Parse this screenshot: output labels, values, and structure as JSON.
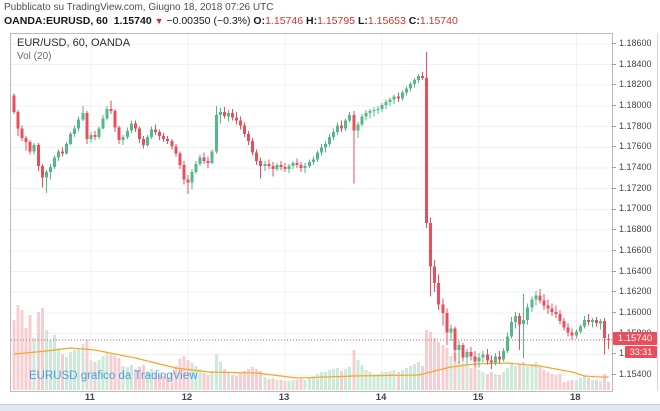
{
  "header": {
    "published": "Pubblicato su TradingView.com, Giugno 18, 2018 07:26 UTC",
    "symbol": "OANDA:EURUSD, 60",
    "last": "1.15740",
    "direction_icon": "▼",
    "change": "−0.00350 (−0.3%)",
    "open_label": "O:",
    "open": "1.15746",
    "high_label": "H:",
    "high": "1.15795",
    "low_label": "L:",
    "low": "1.15653",
    "close_label": "C:",
    "close": "1.15740"
  },
  "legend": {
    "symbol": "EUR/USD, 60, OANDA",
    "indicator": "Vol (20)"
  },
  "watermark": "EURUSD grafico da TradingView",
  "price_scale": {
    "tick_labels": [
      "1.18600",
      "1.18400",
      "1.18200",
      "1.18000",
      "1.17800",
      "1.17600",
      "1.17400",
      "1.17200",
      "1.17000",
      "1.16800",
      "1.16600",
      "1.16400",
      "1.16200",
      "1.16000",
      "1.15800",
      "1.15600",
      "1.15400"
    ],
    "last_price_badge": "1.15740",
    "countdown_badge": "33:31"
  },
  "time_scale": {
    "labels": [
      "11",
      "12",
      "13",
      "14",
      "15",
      "18"
    ]
  },
  "colors": {
    "up": "#53b987",
    "down": "#eb4d5c",
    "vol_up": "#cde9d8",
    "vol_down": "#f8cdd2",
    "vol_ma": "#f5a623",
    "last_price_line": "#eb4d5c",
    "grid": "#f0f0f0",
    "header_value_red": "#d0342c"
  },
  "chart_data": {
    "type": "candlestick",
    "title": "EUR/USD, 60, OANDA",
    "symbol": "OANDA:EURUSD",
    "interval_minutes": 60,
    "legend_indicator": "Vol (20)",
    "ylim": [
      1.15245,
      1.18695
    ],
    "grid_step": 0.002,
    "last_price": 1.1574,
    "countdown": "33:31",
    "day_labels": [
      "11",
      "12",
      "13",
      "14",
      "15",
      "18"
    ],
    "day_start_indices": [
      19,
      43,
      67,
      91,
      115,
      139
    ],
    "ohlc": [
      [
        1.181,
        1.1812,
        1.1792,
        1.1794
      ],
      [
        1.1794,
        1.1796,
        1.1771,
        1.1778
      ],
      [
        1.1778,
        1.1781,
        1.1766,
        1.1769
      ],
      [
        1.1769,
        1.1771,
        1.1757,
        1.1765
      ],
      [
        1.1765,
        1.1767,
        1.1753,
        1.1756
      ],
      [
        1.1756,
        1.1764,
        1.1753,
        1.1762
      ],
      [
        1.1762,
        1.1764,
        1.1737,
        1.1742
      ],
      [
        1.1742,
        1.1744,
        1.1721,
        1.1731
      ],
      [
        1.1731,
        1.1738,
        1.1716,
        1.1736
      ],
      [
        1.1736,
        1.1744,
        1.1729,
        1.1741
      ],
      [
        1.1741,
        1.1752,
        1.1739,
        1.175
      ],
      [
        1.175,
        1.1758,
        1.1747,
        1.1756
      ],
      [
        1.1756,
        1.176,
        1.1751,
        1.1754
      ],
      [
        1.1754,
        1.1765,
        1.1753,
        1.1763
      ],
      [
        1.1763,
        1.1775,
        1.1762,
        1.1773
      ],
      [
        1.1773,
        1.1781,
        1.177,
        1.1778
      ],
      [
        1.1778,
        1.179,
        1.1776,
        1.1787
      ],
      [
        1.1787,
        1.18,
        1.1785,
        1.1793
      ],
      [
        1.1793,
        1.1795,
        1.1763,
        1.1768
      ],
      [
        1.1768,
        1.1775,
        1.1764,
        1.1772
      ],
      [
        1.1772,
        1.1776,
        1.1767,
        1.177
      ],
      [
        1.177,
        1.178,
        1.1768,
        1.1778
      ],
      [
        1.1778,
        1.1791,
        1.1777,
        1.1788
      ],
      [
        1.1788,
        1.18,
        1.1786,
        1.1797
      ],
      [
        1.1797,
        1.1805,
        1.1792,
        1.1795
      ],
      [
        1.1795,
        1.1797,
        1.1775,
        1.1779
      ],
      [
        1.1779,
        1.1781,
        1.1763,
        1.1767
      ],
      [
        1.1767,
        1.1772,
        1.1762,
        1.177
      ],
      [
        1.177,
        1.1779,
        1.1768,
        1.1776
      ],
      [
        1.1776,
        1.1786,
        1.1774,
        1.1783
      ],
      [
        1.1783,
        1.1786,
        1.1775,
        1.1778
      ],
      [
        1.1778,
        1.178,
        1.1764,
        1.1768
      ],
      [
        1.1768,
        1.1771,
        1.1759,
        1.1762
      ],
      [
        1.1762,
        1.1772,
        1.1761,
        1.177
      ],
      [
        1.177,
        1.178,
        1.1768,
        1.1777
      ],
      [
        1.1777,
        1.1782,
        1.1772,
        1.1775
      ],
      [
        1.1775,
        1.1777,
        1.1767,
        1.1771
      ],
      [
        1.1771,
        1.1774,
        1.1765,
        1.1768
      ],
      [
        1.1768,
        1.1771,
        1.1763,
        1.1766
      ],
      [
        1.1766,
        1.1768,
        1.1758,
        1.1761
      ],
      [
        1.1761,
        1.1763,
        1.1751,
        1.1754
      ],
      [
        1.1754,
        1.1756,
        1.1739,
        1.1743
      ],
      [
        1.1743,
        1.1747,
        1.1724,
        1.1729
      ],
      [
        1.1729,
        1.1733,
        1.1715,
        1.1726
      ],
      [
        1.1726,
        1.1739,
        1.1719,
        1.1736
      ],
      [
        1.1736,
        1.1747,
        1.1734,
        1.1744
      ],
      [
        1.1744,
        1.1753,
        1.1742,
        1.175
      ],
      [
        1.175,
        1.1755,
        1.1744,
        1.1747
      ],
      [
        1.1747,
        1.1751,
        1.174,
        1.1745
      ],
      [
        1.1745,
        1.1758,
        1.1744,
        1.1756
      ],
      [
        1.1756,
        1.18,
        1.1754,
        1.1791
      ],
      [
        1.1791,
        1.1798,
        1.1783,
        1.1794
      ],
      [
        1.1794,
        1.1799,
        1.1788,
        1.179
      ],
      [
        1.179,
        1.1796,
        1.1785,
        1.1793
      ],
      [
        1.1793,
        1.1797,
        1.1786,
        1.1789
      ],
      [
        1.1789,
        1.1794,
        1.1782,
        1.1786
      ],
      [
        1.1786,
        1.179,
        1.1777,
        1.1781
      ],
      [
        1.1781,
        1.1784,
        1.177,
        1.1773
      ],
      [
        1.1773,
        1.1776,
        1.1762,
        1.1766
      ],
      [
        1.1766,
        1.1769,
        1.1752,
        1.1755
      ],
      [
        1.1755,
        1.1758,
        1.1743,
        1.1747
      ],
      [
        1.1747,
        1.175,
        1.173,
        1.1742
      ],
      [
        1.1742,
        1.1747,
        1.1737,
        1.1744
      ],
      [
        1.1744,
        1.1748,
        1.1739,
        1.1742
      ],
      [
        1.1742,
        1.1746,
        1.1732,
        1.1739
      ],
      [
        1.1739,
        1.1745,
        1.1737,
        1.1743
      ],
      [
        1.1743,
        1.1747,
        1.1738,
        1.1741
      ],
      [
        1.1741,
        1.1745,
        1.1736,
        1.1739
      ],
      [
        1.1739,
        1.1744,
        1.1735,
        1.1742
      ],
      [
        1.1742,
        1.1747,
        1.1739,
        1.1745
      ],
      [
        1.1745,
        1.1749,
        1.174,
        1.1743
      ],
      [
        1.1743,
        1.1746,
        1.1736,
        1.174
      ],
      [
        1.174,
        1.1745,
        1.1735,
        1.1742
      ],
      [
        1.1742,
        1.1748,
        1.174,
        1.1746
      ],
      [
        1.1746,
        1.1751,
        1.1743,
        1.1748
      ],
      [
        1.1748,
        1.1757,
        1.1746,
        1.1755
      ],
      [
        1.1755,
        1.1763,
        1.1752,
        1.176
      ],
      [
        1.176,
        1.1766,
        1.1755,
        1.1763
      ],
      [
        1.1763,
        1.1773,
        1.1761,
        1.177
      ],
      [
        1.177,
        1.1778,
        1.1767,
        1.1775
      ],
      [
        1.1775,
        1.1784,
        1.1772,
        1.1781
      ],
      [
        1.1781,
        1.1786,
        1.1775,
        1.1778
      ],
      [
        1.1778,
        1.1788,
        1.1776,
        1.1786
      ],
      [
        1.1786,
        1.1794,
        1.1784,
        1.1791
      ],
      [
        1.1791,
        1.1795,
        1.1725,
        1.1776
      ],
      [
        1.1776,
        1.1785,
        1.1769,
        1.1782
      ],
      [
        1.1782,
        1.1792,
        1.178,
        1.179
      ],
      [
        1.179,
        1.1796,
        1.1786,
        1.1793
      ],
      [
        1.1793,
        1.1797,
        1.1788,
        1.1795
      ],
      [
        1.1795,
        1.1799,
        1.179,
        1.1796
      ],
      [
        1.1796,
        1.18,
        1.1792,
        1.1797
      ],
      [
        1.1797,
        1.1803,
        1.1794,
        1.1801
      ],
      [
        1.1801,
        1.1806,
        1.1797,
        1.1804
      ],
      [
        1.1804,
        1.1808,
        1.18,
        1.1806
      ],
      [
        1.1806,
        1.1811,
        1.1802,
        1.1809
      ],
      [
        1.1809,
        1.1813,
        1.1804,
        1.1807
      ],
      [
        1.1807,
        1.1815,
        1.1805,
        1.1813
      ],
      [
        1.1813,
        1.1819,
        1.181,
        1.1817
      ],
      [
        1.1817,
        1.1823,
        1.1814,
        1.1821
      ],
      [
        1.1821,
        1.1827,
        1.1818,
        1.1825
      ],
      [
        1.1825,
        1.1831,
        1.1822,
        1.1829
      ],
      [
        1.1829,
        1.1833,
        1.1825,
        1.1827
      ],
      [
        1.1827,
        1.1852,
        1.1682,
        1.1687
      ],
      [
        1.1687,
        1.1692,
        1.1616,
        1.1645
      ],
      [
        1.1645,
        1.1651,
        1.162,
        1.1629
      ],
      [
        1.1629,
        1.1637,
        1.1603,
        1.1608
      ],
      [
        1.1608,
        1.1614,
        1.1588,
        1.16
      ],
      [
        1.16,
        1.1604,
        1.1569,
        1.1581
      ],
      [
        1.1581,
        1.1589,
        1.1573,
        1.1585
      ],
      [
        1.1585,
        1.1587,
        1.1553,
        1.1564
      ],
      [
        1.1564,
        1.1573,
        1.1551,
        1.1569
      ],
      [
        1.1569,
        1.1571,
        1.1553,
        1.1557
      ],
      [
        1.1557,
        1.1565,
        1.155,
        1.1562
      ],
      [
        1.1562,
        1.1567,
        1.1554,
        1.1558
      ],
      [
        1.1558,
        1.1563,
        1.1548,
        1.1553
      ],
      [
        1.1553,
        1.1561,
        1.1547,
        1.1557
      ],
      [
        1.1557,
        1.1563,
        1.1552,
        1.156
      ],
      [
        1.156,
        1.1565,
        1.155,
        1.1554
      ],
      [
        1.1554,
        1.1559,
        1.1546,
        1.1552
      ],
      [
        1.1552,
        1.1561,
        1.1549,
        1.1558
      ],
      [
        1.1558,
        1.1563,
        1.1551,
        1.1555
      ],
      [
        1.1555,
        1.1566,
        1.1553,
        1.1563
      ],
      [
        1.1563,
        1.1581,
        1.1561,
        1.1577
      ],
      [
        1.1577,
        1.1596,
        1.1575,
        1.1591
      ],
      [
        1.1591,
        1.1601,
        1.1585,
        1.1597
      ],
      [
        1.1597,
        1.16,
        1.1564,
        1.1589
      ],
      [
        1.1589,
        1.1618,
        1.1556,
        1.1593
      ],
      [
        1.1593,
        1.1609,
        1.1589,
        1.1605
      ],
      [
        1.1605,
        1.1616,
        1.1601,
        1.1613
      ],
      [
        1.1613,
        1.1621,
        1.1607,
        1.1617
      ],
      [
        1.1617,
        1.1623,
        1.1609,
        1.1612
      ],
      [
        1.1612,
        1.1618,
        1.1603,
        1.1607
      ],
      [
        1.1607,
        1.1613,
        1.1599,
        1.1604
      ],
      [
        1.1604,
        1.1609,
        1.1597,
        1.1601
      ],
      [
        1.1601,
        1.1607,
        1.1595,
        1.1599
      ],
      [
        1.1599,
        1.1603,
        1.1589,
        1.1592
      ],
      [
        1.1592,
        1.1595,
        1.1583,
        1.1586
      ],
      [
        1.1586,
        1.159,
        1.1577,
        1.1581
      ],
      [
        1.1581,
        1.1585,
        1.1574,
        1.1578
      ],
      [
        1.1578,
        1.1584,
        1.1575,
        1.1582
      ],
      [
        1.1582,
        1.1589,
        1.158,
        1.1587
      ],
      [
        1.1587,
        1.1597,
        1.1585,
        1.1593
      ],
      [
        1.1593,
        1.1599,
        1.1588,
        1.1591
      ],
      [
        1.1591,
        1.1595,
        1.1586,
        1.1593
      ],
      [
        1.1593,
        1.1596,
        1.1587,
        1.159
      ],
      [
        1.159,
        1.1594,
        1.1584,
        1.1592
      ],
      [
        1.1592,
        1.1595,
        1.156,
        1.1576
      ],
      [
        1.15746,
        1.15795,
        1.15653,
        1.1574
      ]
    ],
    "volume": [
      70,
      85,
      80,
      62,
      75,
      52,
      78,
      82,
      60,
      50,
      55,
      42,
      36,
      33,
      38,
      40,
      42,
      46,
      50,
      30,
      28,
      30,
      34,
      38,
      36,
      34,
      32,
      24,
      23,
      25,
      21,
      23,
      25,
      19,
      21,
      17,
      15,
      14,
      13,
      17,
      24,
      31,
      34,
      30,
      27,
      24,
      21,
      17,
      15,
      19,
      36,
      28,
      21,
      17,
      15,
      14,
      17,
      19,
      21,
      23,
      21,
      19,
      13,
      11,
      12,
      10,
      10,
      9,
      9,
      10,
      10,
      11,
      10,
      12,
      12,
      16,
      18,
      18,
      20,
      21,
      22,
      19,
      21,
      23,
      40,
      30,
      25,
      20,
      18,
      16,
      16,
      18,
      18,
      19,
      20,
      18,
      20,
      22,
      24,
      26,
      28,
      24,
      60,
      58,
      52,
      48,
      45,
      42,
      34,
      37,
      29,
      27,
      24,
      22,
      24,
      20,
      18,
      16,
      18,
      16,
      15,
      18,
      22,
      26,
      24,
      26,
      28,
      24,
      26,
      28,
      24,
      20,
      18,
      16,
      15,
      16,
      8,
      9,
      10,
      10,
      12,
      14,
      12,
      10,
      10,
      9,
      16,
      8
    ],
    "vol_ma_knots": [
      [
        0,
        36
      ],
      [
        8,
        39
      ],
      [
        14,
        42
      ],
      [
        20,
        40
      ],
      [
        30,
        32
      ],
      [
        40,
        22
      ],
      [
        48,
        18
      ],
      [
        60,
        17
      ],
      [
        70,
        12
      ],
      [
        84,
        14
      ],
      [
        100,
        15
      ],
      [
        104,
        19
      ],
      [
        108,
        23
      ],
      [
        114,
        26
      ],
      [
        122,
        27
      ],
      [
        130,
        24
      ],
      [
        138,
        18
      ],
      [
        141,
        14
      ],
      [
        145,
        13
      ],
      [
        147,
        13
      ]
    ]
  }
}
